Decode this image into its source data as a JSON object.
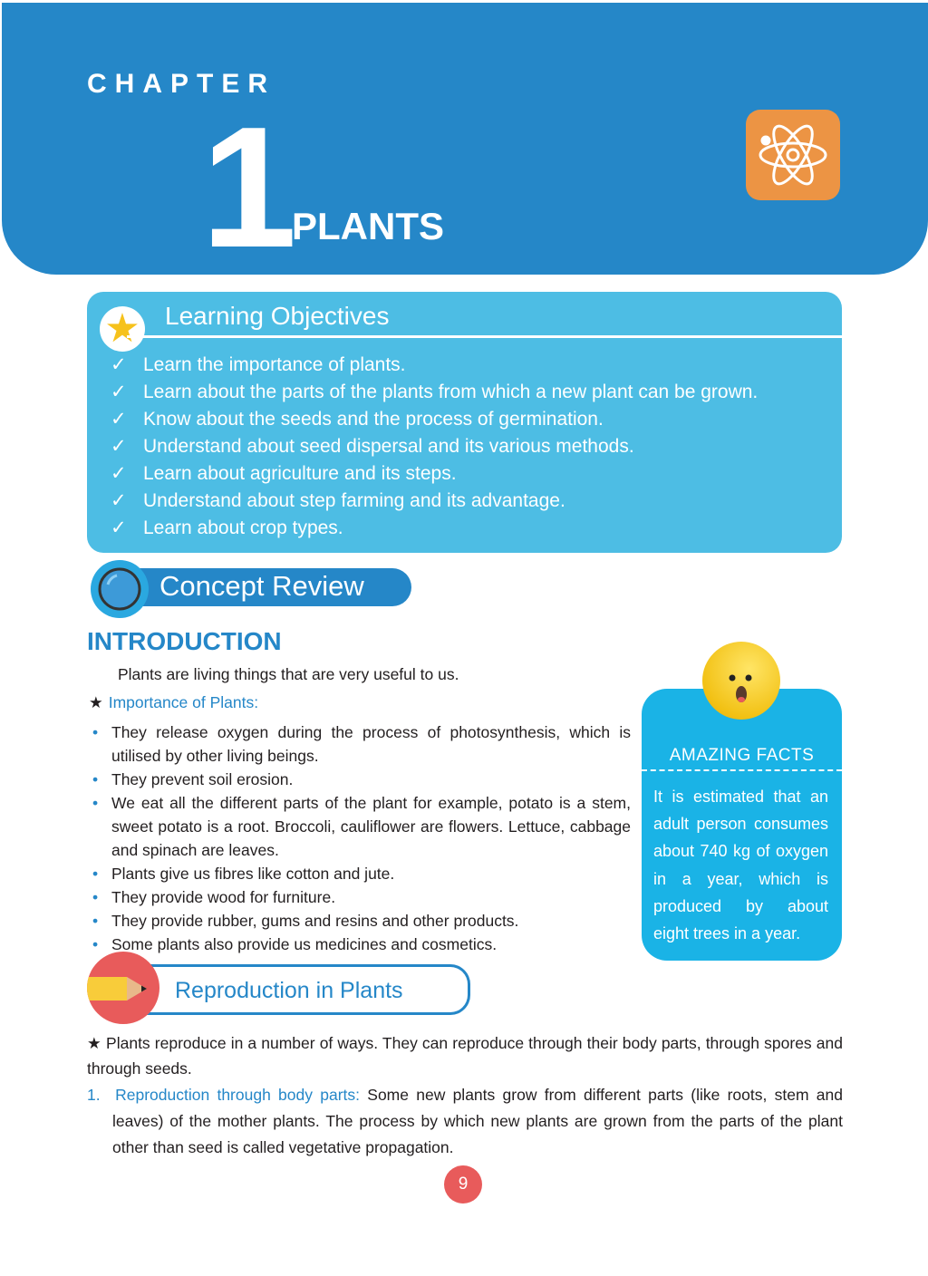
{
  "header": {
    "chapter_label": "CHAPTER",
    "chapter_number": "1",
    "chapter_title": "PLANTS",
    "icon": "atom-icon",
    "color": "#2587c8"
  },
  "learning_objectives": {
    "title": "Learning Objectives",
    "check": "✓",
    "items": [
      "Learn the importance of plants.",
      "Learn about the parts of the plants from which a new plant can be grown.",
      "Know about the seeds and the process of germination.",
      "Understand about seed dispersal and its various methods.",
      "Learn about agriculture and its steps.",
      "Understand about step farming and its advantage.",
      "Learn about crop types."
    ]
  },
  "concept_review": {
    "title": "Concept Review"
  },
  "introduction": {
    "heading": "INTRODUCTION",
    "text": "Plants are living things that are very useful to us.",
    "importance_star": "★",
    "importance_label": "Importance of Plants:",
    "bullets": [
      "They release oxygen during the process of photosynthesis, which is utilised by other living beings.",
      "They prevent soil erosion.",
      "We eat all the different parts of the plant for example, potato is a stem, sweet potato is a root. Broccoli, cauliflower are flowers. Lettuce, cabbage and spinach are leaves.",
      "Plants give us fibres like cotton and jute.",
      "They provide wood for furniture.",
      "They provide rubber, gums and resins and other products.",
      "Some plants also provide us medicines and cosmetics."
    ]
  },
  "amazing_facts": {
    "title": "AMAZING FACTS",
    "text": "It is estimated that an adult person consumes about 740 kg of oxygen in a year, which is produced by about eight trees in a year."
  },
  "reproduction": {
    "title": "Reproduction in Plants",
    "star": "★",
    "intro": "Plants reproduce in a number of ways. They can reproduce through their body parts, through spores and through seeds.",
    "point_number": "1.",
    "point_label": "Reproduction through body parts:",
    "point_text": "Some new plants grow from different parts (like roots, stem and leaves) of the mother plants.  The process by which new plants are grown from the parts of the plant other than seed is called vegetative propagation."
  },
  "page_number": "9"
}
